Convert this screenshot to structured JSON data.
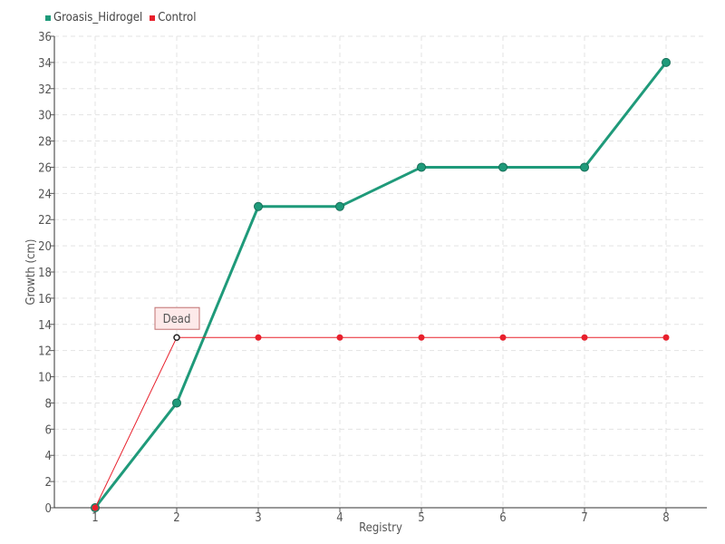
{
  "chart_data": {
    "type": "line",
    "xlabel": "Registry",
    "ylabel": "Growth (cm)",
    "x": [
      1,
      2,
      3,
      4,
      5,
      6,
      7,
      8
    ],
    "xlim": [
      0.5,
      8.5
    ],
    "ylim": [
      0,
      36
    ],
    "ytick_step": 2,
    "grid": true,
    "legend_position": "top-left",
    "series": [
      {
        "name": "Groasis_Hidrogel",
        "color": "#1f9a7a",
        "values": [
          0,
          8,
          23,
          23,
          26,
          26,
          26,
          34
        ]
      },
      {
        "name": "Control",
        "color": "#e8202c",
        "values": [
          0,
          13,
          13,
          13,
          13,
          13,
          13,
          13
        ]
      }
    ],
    "annotations": [
      {
        "text": "Dead",
        "series": "Control",
        "x": 2,
        "y": 13
      }
    ]
  }
}
